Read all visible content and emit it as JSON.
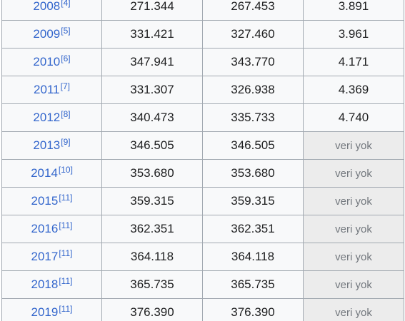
{
  "table": {
    "rows": [
      {
        "year": "2008",
        "ref": "[4]",
        "col1": "271.344",
        "col2": "267.453",
        "col3": "3.891",
        "col3_missing": false
      },
      {
        "year": "2009",
        "ref": "[5]",
        "col1": "331.421",
        "col2": "327.460",
        "col3": "3.961",
        "col3_missing": false
      },
      {
        "year": "2010",
        "ref": "[6]",
        "col1": "347.941",
        "col2": "343.770",
        "col3": "4.171",
        "col3_missing": false
      },
      {
        "year": "2011",
        "ref": "[7]",
        "col1": "331.307",
        "col2": "326.938",
        "col3": "4.369",
        "col3_missing": false
      },
      {
        "year": "2012",
        "ref": "[8]",
        "col1": "340.473",
        "col2": "335.733",
        "col3": "4.740",
        "col3_missing": false
      },
      {
        "year": "2013",
        "ref": "[9]",
        "col1": "346.505",
        "col2": "346.505",
        "col3": "veri yok",
        "col3_missing": true
      },
      {
        "year": "2014",
        "ref": "[10]",
        "col1": "353.680",
        "col2": "353.680",
        "col3": "veri yok",
        "col3_missing": true
      },
      {
        "year": "2015",
        "ref": "[11]",
        "col1": "359.315",
        "col2": "359.315",
        "col3": "veri yok",
        "col3_missing": true
      },
      {
        "year": "2016",
        "ref": "[11]",
        "col1": "362.351",
        "col2": "362.351",
        "col3": "veri yok",
        "col3_missing": true
      },
      {
        "year": "2017",
        "ref": "[11]",
        "col1": "364.118",
        "col2": "364.118",
        "col3": "veri yok",
        "col3_missing": true
      },
      {
        "year": "2018",
        "ref": "[11]",
        "col1": "365.735",
        "col2": "365.735",
        "col3": "veri yok",
        "col3_missing": true
      },
      {
        "year": "2019",
        "ref": "[11]",
        "col1": "376.390",
        "col2": "376.390",
        "col3": "veri yok",
        "col3_missing": true
      }
    ]
  },
  "colors": {
    "link": "#3366cc",
    "cell_background": "#f8f9fa",
    "missing_background": "#ececec",
    "border": "#a2a9b1"
  }
}
